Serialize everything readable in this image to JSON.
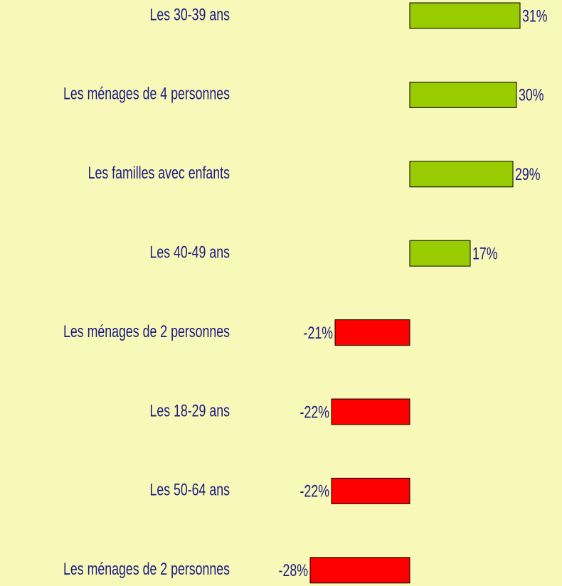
{
  "chart_data": {
    "type": "bar",
    "orientation": "horizontal",
    "categories": [
      "Les 30-39 ans",
      "Les ménages de 4 personnes",
      "Les familles avec enfants",
      "Les 40-49 ans",
      "Les ménages de 2 personnes",
      "Les 18-29 ans",
      "Les 50-64 ans",
      "Les ménages de 2 personnes"
    ],
    "values": [
      31,
      30,
      29,
      17,
      -21,
      -22,
      -22,
      -28
    ],
    "value_labels": [
      "31%",
      "30%",
      "29%",
      "17%",
      "-21%",
      "-22%",
      "-22%",
      "-28%"
    ],
    "positive_color": "#99cc00",
    "negative_color": "#ff0000",
    "xlim": [
      -50,
      40
    ]
  }
}
